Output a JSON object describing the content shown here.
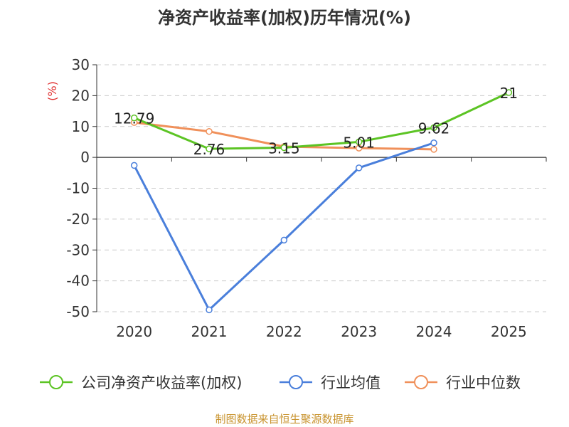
{
  "chart_data": {
    "type": "line",
    "title": "净资产收益率(加权)历年情况(%)",
    "ylabel": "(%)",
    "xlabel": "",
    "categories": [
      "2020",
      "2021",
      "2022",
      "2023",
      "2024",
      "2025"
    ],
    "ylim": [
      -50,
      30
    ],
    "yticks": [
      30,
      20,
      10,
      0,
      -10,
      -20,
      -30,
      -40,
      -50
    ],
    "grid": true,
    "legend_position": "bottom",
    "series": [
      {
        "name": "公司净资产收益率(加权)",
        "color": "#5cc424",
        "values": [
          12.79,
          2.76,
          3.15,
          5.01,
          9.62,
          21
        ],
        "labels": [
          "12.79",
          "2.76",
          "3.15",
          "5.01",
          "9.62",
          "21"
        ]
      },
      {
        "name": "行业均值",
        "color": "#4a7fdb",
        "values": [
          -2.6,
          -49.4,
          -26.8,
          -3.4,
          4.7,
          null
        ]
      },
      {
        "name": "行业中位数",
        "color": "#f0905a",
        "values": [
          11.3,
          8.4,
          3.5,
          3.0,
          2.6,
          null
        ]
      }
    ],
    "source": "制图数据来自恒生聚源数据库",
    "source_color": "#c8932e",
    "ylabel_color": "#e03030"
  }
}
